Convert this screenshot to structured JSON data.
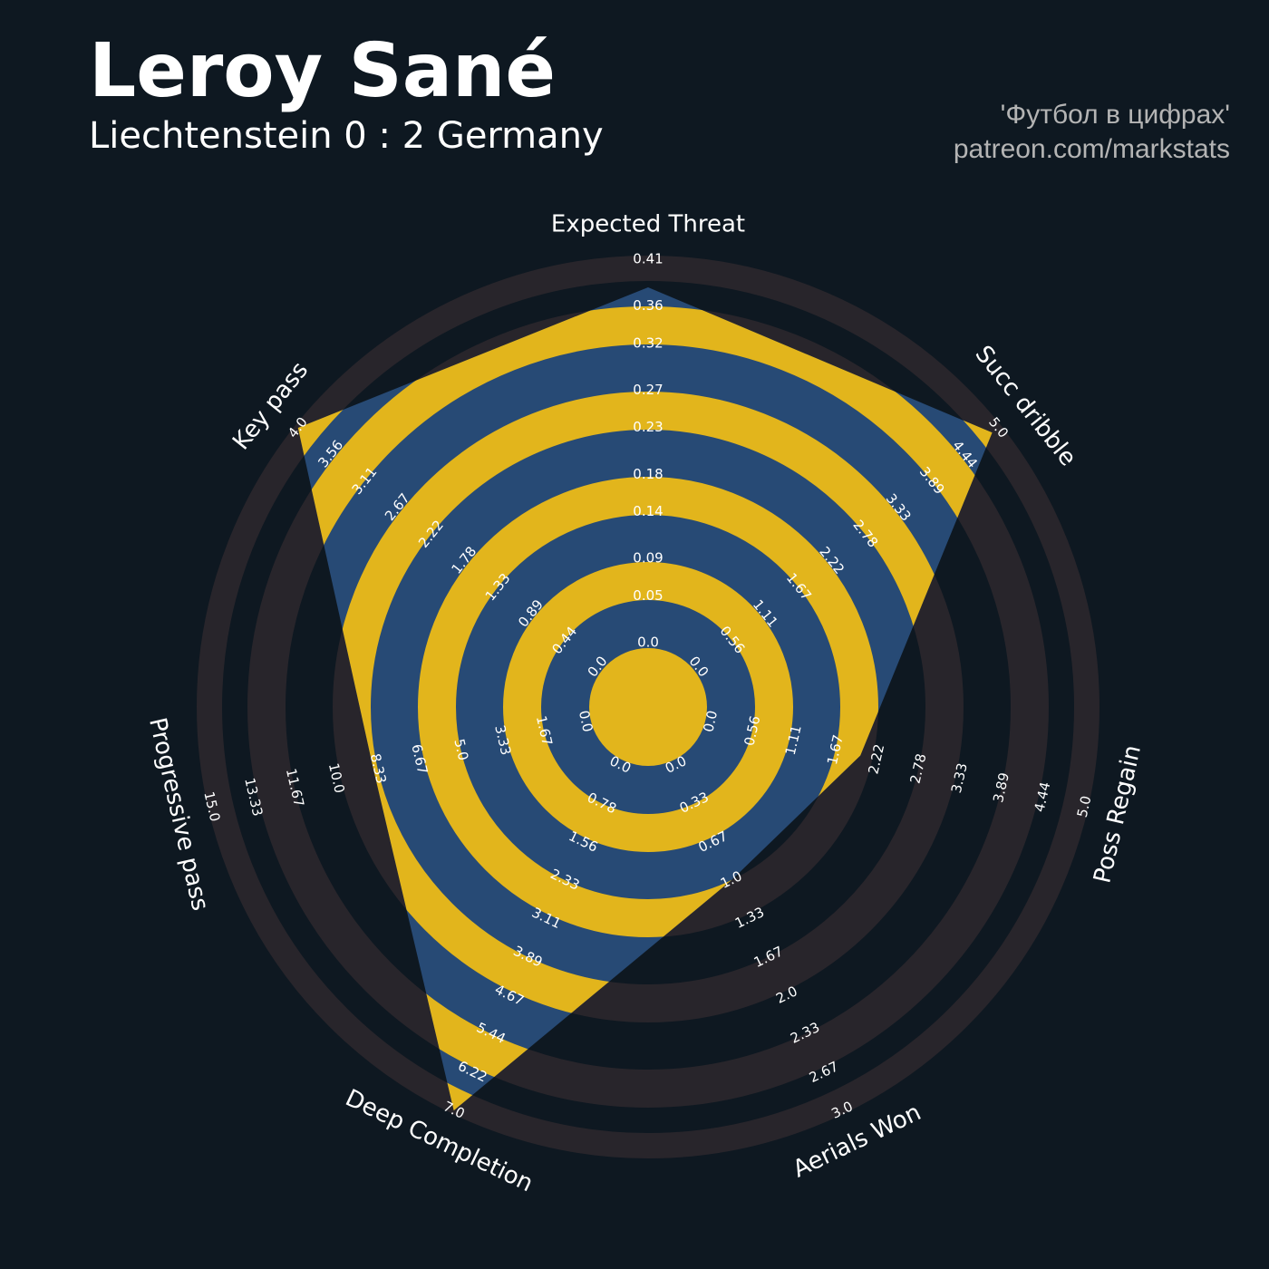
{
  "chart_data": {
    "type": "radar",
    "title": "Leroy Sané",
    "subtitle": "Liechtenstein 0 : 2 Germany",
    "credits": [
      "'Футбол в цифрах'",
      "patreon.com/markstats"
    ],
    "background": "#0e1821",
    "ring_color": "#28252b",
    "fill_color": "#274a75",
    "fill_ring_color": "#e2b51c",
    "axes": [
      {
        "name": "Expected Threat",
        "lim": [
          0,
          0.41
        ],
        "ticks": [
          {
            "value": 0,
            "label": "0.0"
          },
          0.05,
          0.09,
          0.14,
          0.18,
          0.23,
          0.27,
          0.32,
          0.36,
          0.41
        ]
      },
      {
        "name": "Key pass",
        "lim": [
          0,
          4
        ],
        "ticks": [
          {
            "value": 0,
            "label": "0.0"
          },
          0.44,
          0.89,
          1.33,
          1.78,
          2.22,
          2.67,
          3.11,
          3.56,
          {
            "value": 4,
            "label": "4.0"
          }
        ]
      },
      {
        "name": "Progressive pass",
        "lim": [
          0,
          15
        ],
        "ticks": [
          {
            "value": 0,
            "label": "0.0"
          },
          1.67,
          3.33,
          {
            "value": 5,
            "label": "5.0"
          },
          6.67,
          8.33,
          {
            "value": 10,
            "label": "10.0"
          },
          11.67,
          13.33,
          {
            "value": 15,
            "label": "15.0"
          }
        ]
      },
      {
        "name": "Deep Completion",
        "lim": [
          0,
          7
        ],
        "ticks": [
          {
            "value": 0,
            "label": "0.0"
          },
          0.78,
          1.56,
          2.33,
          3.11,
          3.89,
          4.67,
          5.44,
          6.22,
          {
            "value": 7,
            "label": "7.0"
          }
        ]
      },
      {
        "name": "Aerials Won",
        "lim": [
          0,
          3
        ],
        "ticks": [
          {
            "value": 0,
            "label": "0.0"
          },
          0.33,
          0.67,
          {
            "value": 1,
            "label": "1.0"
          },
          1.33,
          1.67,
          {
            "value": 2,
            "label": "2.0"
          },
          2.33,
          2.67,
          {
            "value": 3,
            "label": "3.0"
          }
        ]
      },
      {
        "name": "Poss Regain",
        "lim": [
          0,
          5
        ],
        "ticks": [
          {
            "value": 0,
            "label": "0.0"
          },
          0.56,
          1.11,
          1.67,
          2.22,
          2.78,
          3.33,
          3.89,
          4.44,
          {
            "value": 5,
            "label": "5.0"
          }
        ]
      },
      {
        "name": "Succ dribble",
        "lim": [
          0,
          5
        ],
        "ticks": [
          {
            "value": 0,
            "label": "0.0"
          },
          0.56,
          1.11,
          1.67,
          2.22,
          2.78,
          3.33,
          3.89,
          4.44,
          {
            "value": 5,
            "label": "5.0"
          }
        ]
      }
    ],
    "values": [
      0.38,
      4.0,
      8.5,
      7.0,
      1.0,
      2.0,
      4.9
    ]
  }
}
